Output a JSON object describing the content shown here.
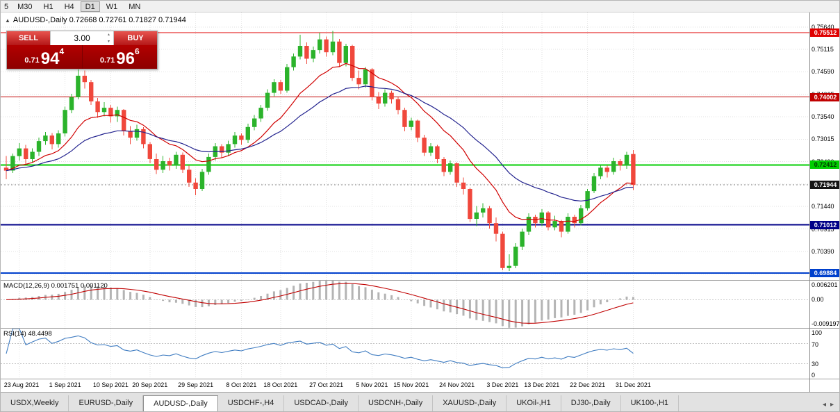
{
  "window": {
    "toolbar_timeframes": [
      "5",
      "M30",
      "H1",
      "H4",
      "D1",
      "W1",
      "MN"
    ],
    "active_timeframe": "D1"
  },
  "chart": {
    "title": "AUDUSD-,Daily 0.72668 0.72761 0.71827 0.71944",
    "symbol": "AUDUSD-,Daily",
    "open": "0.72668",
    "high": "0.72761",
    "low": "0.71827",
    "close": "0.71944"
  },
  "trade_panel": {
    "sell_label": "SELL",
    "buy_label": "BUY",
    "volume": "3.00",
    "sell_price": {
      "prefix": "0.71",
      "big": "94",
      "sup": "4"
    },
    "buy_price": {
      "prefix": "0.71",
      "big": "96",
      "sup": "6"
    }
  },
  "indicators": {
    "macd_label": "MACD(12,26,9) 0.001751 0.001120",
    "macd_axis": [
      "0.006201",
      "0.00",
      "-0.009197"
    ],
    "rsi_label": "RSI(14) 48.4498",
    "rsi_axis": [
      "100",
      "70",
      "30",
      "0"
    ]
  },
  "price_axis": {
    "grid_labels": [
      0.7564,
      0.75115,
      0.7459,
      0.74065,
      0.7354,
      0.73015,
      0.7249,
      0.71965,
      0.7144,
      0.70915,
      0.7039,
      0.69865
    ],
    "badges": [
      {
        "price": 0.75512,
        "text": "0.75512",
        "bg": "#e00000",
        "fg": "#ffffff"
      },
      {
        "price": 0.74002,
        "text": "0.74002",
        "bg": "#c00000",
        "fg": "#ffffff"
      },
      {
        "price": 0.72412,
        "text": "0.72412",
        "bg": "#00ce00",
        "fg": "#003300"
      },
      {
        "price": 0.71944,
        "text": "0.71944",
        "bg": "#141414",
        "fg": "#ffffff"
      },
      {
        "price": 0.71012,
        "text": "0.71012",
        "bg": "#000088",
        "fg": "#ffffff"
      },
      {
        "price": 0.69884,
        "text": "0.69884",
        "bg": "#0040cc",
        "fg": "#ffffff"
      }
    ]
  },
  "chart_data": {
    "type": "candlestick",
    "symbol": "AUDUSD",
    "timeframe": "Daily",
    "y_max": 0.7598,
    "y_min": 0.6972,
    "up_color": "#2bb32b",
    "down_color": "#f0483c",
    "grid_color": "#e2e2e2",
    "candles": [
      [
        0.7235,
        0.7262,
        0.7208,
        0.7228
      ],
      [
        0.7228,
        0.7268,
        0.7222,
        0.7262
      ],
      [
        0.7262,
        0.7292,
        0.7252,
        0.728
      ],
      [
        0.728,
        0.7288,
        0.7243,
        0.7255
      ],
      [
        0.7255,
        0.728,
        0.7248,
        0.7272
      ],
      [
        0.7272,
        0.7305,
        0.7262,
        0.7297
      ],
      [
        0.7297,
        0.7318,
        0.7288,
        0.731
      ],
      [
        0.731,
        0.7316,
        0.7278,
        0.729
      ],
      [
        0.729,
        0.7322,
        0.7282,
        0.7315
      ],
      [
        0.7315,
        0.7378,
        0.7308,
        0.737
      ],
      [
        0.737,
        0.7408,
        0.7362,
        0.74
      ],
      [
        0.74,
        0.7478,
        0.7395,
        0.745
      ],
      [
        0.745,
        0.7462,
        0.742,
        0.7435
      ],
      [
        0.7435,
        0.744,
        0.7382,
        0.739
      ],
      [
        0.739,
        0.7398,
        0.7352,
        0.7365
      ],
      [
        0.7365,
        0.7388,
        0.7355,
        0.7375
      ],
      [
        0.7375,
        0.7382,
        0.734,
        0.7355
      ],
      [
        0.7355,
        0.7378,
        0.7342,
        0.737
      ],
      [
        0.737,
        0.7372,
        0.731,
        0.732
      ],
      [
        0.732,
        0.7332,
        0.729,
        0.7305
      ],
      [
        0.7305,
        0.7335,
        0.7298,
        0.7325
      ],
      [
        0.7325,
        0.733,
        0.728,
        0.729
      ],
      [
        0.729,
        0.7295,
        0.7245,
        0.7255
      ],
      [
        0.7255,
        0.7268,
        0.722,
        0.723
      ],
      [
        0.723,
        0.7262,
        0.7222,
        0.725
      ],
      [
        0.725,
        0.7258,
        0.7228,
        0.724
      ],
      [
        0.724,
        0.7272,
        0.7232,
        0.7265
      ],
      [
        0.7265,
        0.727,
        0.7222,
        0.723
      ],
      [
        0.723,
        0.724,
        0.719,
        0.72
      ],
      [
        0.72,
        0.721,
        0.717,
        0.7185
      ],
      [
        0.7185,
        0.7232,
        0.718,
        0.7225
      ],
      [
        0.7225,
        0.7268,
        0.7218,
        0.726
      ],
      [
        0.726,
        0.7292,
        0.7252,
        0.7285
      ],
      [
        0.7285,
        0.729,
        0.7258,
        0.727
      ],
      [
        0.727,
        0.7298,
        0.7262,
        0.729
      ],
      [
        0.729,
        0.7318,
        0.7282,
        0.731
      ],
      [
        0.731,
        0.7315,
        0.7288,
        0.73
      ],
      [
        0.73,
        0.7338,
        0.7292,
        0.733
      ],
      [
        0.733,
        0.7358,
        0.7322,
        0.735
      ],
      [
        0.735,
        0.7382,
        0.7342,
        0.7375
      ],
      [
        0.7375,
        0.7418,
        0.7368,
        0.741
      ],
      [
        0.741,
        0.7442,
        0.7402,
        0.7435
      ],
      [
        0.7435,
        0.744,
        0.7408,
        0.7415
      ],
      [
        0.7415,
        0.7478,
        0.741,
        0.747
      ],
      [
        0.747,
        0.7502,
        0.7462,
        0.7495
      ],
      [
        0.7495,
        0.7546,
        0.7488,
        0.752
      ],
      [
        0.752,
        0.7528,
        0.7478,
        0.749
      ],
      [
        0.749,
        0.7518,
        0.7482,
        0.751
      ],
      [
        0.751,
        0.7551,
        0.7502,
        0.7535
      ],
      [
        0.7535,
        0.7542,
        0.7495,
        0.7505
      ],
      [
        0.7505,
        0.7555,
        0.7498,
        0.753
      ],
      [
        0.753,
        0.7536,
        0.747,
        0.748
      ],
      [
        0.748,
        0.7525,
        0.7472,
        0.752
      ],
      [
        0.752,
        0.7522,
        0.7438,
        0.7445
      ],
      [
        0.7445,
        0.7462,
        0.7418,
        0.743
      ],
      [
        0.743,
        0.747,
        0.7422,
        0.7465
      ],
      [
        0.7465,
        0.7468,
        0.7392,
        0.74
      ],
      [
        0.74,
        0.7412,
        0.7372,
        0.7385
      ],
      [
        0.7385,
        0.7418,
        0.7378,
        0.741
      ],
      [
        0.741,
        0.7415,
        0.7385,
        0.7395
      ],
      [
        0.7395,
        0.74,
        0.736,
        0.737
      ],
      [
        0.737,
        0.7375,
        0.732,
        0.733
      ],
      [
        0.733,
        0.7352,
        0.7322,
        0.7345
      ],
      [
        0.7345,
        0.7348,
        0.7295,
        0.7305
      ],
      [
        0.7305,
        0.7312,
        0.7262,
        0.727
      ],
      [
        0.727,
        0.7292,
        0.7262,
        0.7285
      ],
      [
        0.7285,
        0.7288,
        0.7245,
        0.7255
      ],
      [
        0.7255,
        0.726,
        0.7215,
        0.7225
      ],
      [
        0.7225,
        0.7252,
        0.7218,
        0.7245
      ],
      [
        0.7245,
        0.7248,
        0.719,
        0.72
      ],
      [
        0.72,
        0.7212,
        0.7172,
        0.7185
      ],
      [
        0.7185,
        0.7188,
        0.7108,
        0.7115
      ],
      [
        0.7115,
        0.7145,
        0.7098,
        0.713
      ],
      [
        0.713,
        0.7152,
        0.7118,
        0.714
      ],
      [
        0.714,
        0.7145,
        0.7092,
        0.7105
      ],
      [
        0.7105,
        0.7118,
        0.7062,
        0.708
      ],
      [
        0.708,
        0.7085,
        0.6995,
        0.7
      ],
      [
        0.7,
        0.7032,
        0.6993,
        0.7005
      ],
      [
        0.7005,
        0.7058,
        0.7,
        0.705
      ],
      [
        0.705,
        0.7092,
        0.7042,
        0.7085
      ],
      [
        0.7085,
        0.7128,
        0.7078,
        0.712
      ],
      [
        0.712,
        0.7125,
        0.7095,
        0.7105
      ],
      [
        0.7105,
        0.7138,
        0.7098,
        0.713
      ],
      [
        0.713,
        0.7133,
        0.7088,
        0.7095
      ],
      [
        0.7095,
        0.7122,
        0.7088,
        0.711
      ],
      [
        0.711,
        0.7113,
        0.7072,
        0.7085
      ],
      [
        0.7085,
        0.7128,
        0.708,
        0.712
      ],
      [
        0.712,
        0.7125,
        0.7095,
        0.7105
      ],
      [
        0.7105,
        0.7148,
        0.71,
        0.714
      ],
      [
        0.714,
        0.7185,
        0.7135,
        0.718
      ],
      [
        0.718,
        0.7222,
        0.7175,
        0.7215
      ],
      [
        0.7215,
        0.7242,
        0.7208,
        0.7235
      ],
      [
        0.7235,
        0.724,
        0.7212,
        0.7225
      ],
      [
        0.7225,
        0.7258,
        0.7218,
        0.725
      ],
      [
        0.725,
        0.7255,
        0.7228,
        0.724
      ],
      [
        0.724,
        0.7272,
        0.7232,
        0.7265
      ],
      [
        0.72668,
        0.72761,
        0.71827,
        0.71944
      ]
    ],
    "ma_lines": [
      {
        "name": "EMA12",
        "period": 12,
        "color": "#d00000"
      },
      {
        "name": "EMA26",
        "period": 26,
        "color": "#22228e"
      }
    ],
    "horizontal_lines": [
      {
        "price": 0.75512,
        "color": "#e00000",
        "width": 1
      },
      {
        "price": 0.74002,
        "color": "#c00000",
        "width": 1
      },
      {
        "price": 0.72412,
        "color": "#00ce00",
        "width": 2
      },
      {
        "price": 0.71944,
        "color": "#888888",
        "width": 1,
        "dash": "2,3"
      },
      {
        "price": 0.71012,
        "color": "#000088",
        "width": 2
      },
      {
        "price": 0.69884,
        "color": "#0040cc",
        "width": 2
      }
    ],
    "x_ticks": [
      {
        "i": 2,
        "label": "23 Aug 2021"
      },
      {
        "i": 9,
        "label": "1 Sep 2021"
      },
      {
        "i": 16,
        "label": "10 Sep 2021"
      },
      {
        "i": 22,
        "label": "20 Sep 2021"
      },
      {
        "i": 29,
        "label": "29 Sep 2021"
      },
      {
        "i": 36,
        "label": "8 Oct 2021"
      },
      {
        "i": 42,
        "label": "18 Oct 2021"
      },
      {
        "i": 49,
        "label": "27 Oct 2021"
      },
      {
        "i": 56,
        "label": "5 Nov 2021"
      },
      {
        "i": 62,
        "label": "15 Nov 2021"
      },
      {
        "i": 69,
        "label": "24 Nov 2021"
      },
      {
        "i": 76,
        "label": "3 Dec 2021"
      },
      {
        "i": 82,
        "label": "13 Dec 2021"
      },
      {
        "i": 89,
        "label": "22 Dec 2021"
      },
      {
        "i": 96,
        "label": "31 Dec 2021"
      }
    ],
    "macd": {
      "fast": 12,
      "slow": 26,
      "signal": 9,
      "max": 0.006201,
      "min": -0.009197,
      "hist_color": "#b4b4b4",
      "signal_color": "#c00000"
    },
    "rsi": {
      "period": 14,
      "color": "#3f7cc1",
      "levels": [
        70,
        30
      ]
    }
  },
  "tabs": {
    "items": [
      "USDX,Weekly",
      "EURUSD-,Daily",
      "AUDUSD-,Daily",
      "USDCHF-,H4",
      "USDCAD-,Daily",
      "USDCNH-,Daily",
      "XAUUSD-,Daily",
      "UKOil-,H1",
      "DJ30-,Daily",
      "UK100-,H1"
    ],
    "active": "AUDUSD-,Daily"
  }
}
